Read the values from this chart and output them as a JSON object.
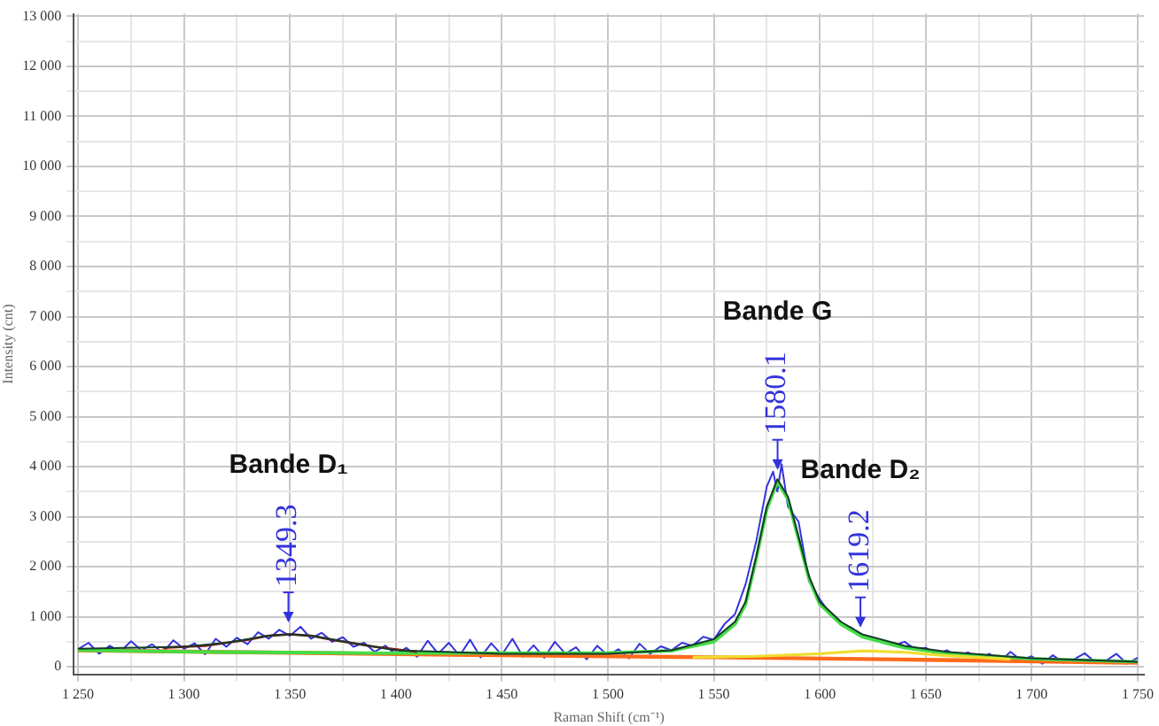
{
  "chart_data": {
    "type": "line",
    "xlabel": "Raman Shift (cm⁻¹)",
    "ylabel": "Intensity (cnt)",
    "xlim": [
      1248,
      1753
    ],
    "ylim": [
      -150,
      13050
    ],
    "xticks": [
      {
        "value": 1250,
        "label": "1 250"
      },
      {
        "value": 1275,
        "label": null
      },
      {
        "value": 1300,
        "label": "1 300"
      },
      {
        "value": 1325,
        "label": null
      },
      {
        "value": 1350,
        "label": "1 350"
      },
      {
        "value": 1375,
        "label": null
      },
      {
        "value": 1400,
        "label": "1 400"
      },
      {
        "value": 1425,
        "label": null
      },
      {
        "value": 1450,
        "label": "1 450"
      },
      {
        "value": 1475,
        "label": null
      },
      {
        "value": 1500,
        "label": "1 500"
      },
      {
        "value": 1525,
        "label": null
      },
      {
        "value": 1550,
        "label": "1 550"
      },
      {
        "value": 1575,
        "label": null
      },
      {
        "value": 1600,
        "label": "1 600"
      },
      {
        "value": 1625,
        "label": null
      },
      {
        "value": 1650,
        "label": "1 650"
      },
      {
        "value": 1675,
        "label": null
      },
      {
        "value": 1700,
        "label": "1 700"
      },
      {
        "value": 1725,
        "label": null
      },
      {
        "value": 1750,
        "label": "1 750"
      }
    ],
    "yticks": [
      0,
      {
        "value": 500,
        "label": null
      },
      {
        "value": 1000,
        "label": "1 000"
      },
      {
        "value": 1500,
        "label": null
      },
      {
        "value": 2000,
        "label": "2 000"
      },
      {
        "value": 2500,
        "label": null
      },
      {
        "value": 3000,
        "label": "3 000"
      },
      {
        "value": 3500,
        "label": null
      },
      {
        "value": 4000,
        "label": "4 000"
      },
      {
        "value": 4500,
        "label": null
      },
      {
        "value": 5000,
        "label": "5 000"
      },
      {
        "value": 5500,
        "label": null
      },
      {
        "value": 6000,
        "label": "6 000"
      },
      {
        "value": 6500,
        "label": null
      },
      {
        "value": 7000,
        "label": "7 000"
      },
      {
        "value": 7500,
        "label": null
      },
      {
        "value": 8000,
        "label": "8 000"
      },
      {
        "value": 8500,
        "label": null
      },
      {
        "value": 9000,
        "label": "9 000"
      },
      {
        "value": 9500,
        "label": null
      },
      {
        "value": 10000,
        "label": "10 000"
      },
      {
        "value": 10500,
        "label": null
      },
      {
        "value": 11000,
        "label": "11 000"
      },
      {
        "value": 11500,
        "label": null
      },
      {
        "value": 12000,
        "label": "12 000"
      },
      {
        "value": 12500,
        "label": null
      },
      {
        "value": 13000,
        "label": "13 000"
      }
    ],
    "grid": true,
    "series": [
      {
        "color": "#3333dd",
        "x": [
          1250,
          1255,
          1260,
          1265,
          1270,
          1275,
          1280,
          1285,
          1290,
          1295,
          1300,
          1305,
          1310,
          1315,
          1320,
          1325,
          1330,
          1335,
          1340,
          1345,
          1350,
          1355,
          1360,
          1365,
          1370,
          1375,
          1380,
          1385,
          1390,
          1395,
          1400,
          1405,
          1410,
          1415,
          1420,
          1425,
          1430,
          1435,
          1440,
          1445,
          1450,
          1455,
          1460,
          1465,
          1470,
          1475,
          1480,
          1485,
          1490,
          1495,
          1500,
          1505,
          1510,
          1515,
          1520,
          1525,
          1530,
          1535,
          1540,
          1545,
          1550,
          1555,
          1560,
          1565,
          1570,
          1575,
          1578,
          1580,
          1582,
          1585,
          1590,
          1595,
          1600,
          1605,
          1610,
          1615,
          1620,
          1625,
          1630,
          1635,
          1640,
          1645,
          1650,
          1655,
          1660,
          1665,
          1670,
          1675,
          1680,
          1685,
          1690,
          1695,
          1700,
          1705,
          1710,
          1715,
          1720,
          1725,
          1730,
          1735,
          1740,
          1745,
          1750
        ],
        "values": [
          350,
          480,
          260,
          420,
          300,
          510,
          330,
          450,
          280,
          530,
          360,
          470,
          250,
          560,
          400,
          580,
          450,
          690,
          560,
          740,
          620,
          800,
          560,
          680,
          500,
          590,
          400,
          480,
          300,
          420,
          250,
          380,
          200,
          520,
          260,
          480,
          220,
          540,
          190,
          470,
          240,
          560,
          200,
          430,
          180,
          500,
          260,
          390,
          150,
          420,
          230,
          350,
          170,
          460,
          260,
          410,
          330,
          480,
          420,
          600,
          540,
          850,
          1050,
          1650,
          2500,
          3600,
          3900,
          3500,
          4050,
          3200,
          2900,
          1700,
          1350,
          1050,
          850,
          780,
          620,
          560,
          480,
          420,
          500,
          350,
          380,
          250,
          330,
          200,
          290,
          160,
          260,
          110,
          300,
          130,
          210,
          60,
          230,
          80,
          150,
          270,
          90,
          120,
          260,
          60,
          180
        ]
      },
      {
        "color": "#ff6a1a",
        "x": [
          1250,
          1350,
          1450,
          1550,
          1650,
          1750
        ],
        "values": [
          330,
          280,
          230,
          190,
          140,
          80
        ]
      },
      {
        "color": "#44dd44",
        "x": [
          1250,
          1300,
          1400,
          1500,
          1530,
          1550,
          1560,
          1565,
          1570,
          1575,
          1580,
          1585,
          1590,
          1595,
          1600,
          1610,
          1620,
          1640,
          1660,
          1700,
          1750
        ],
        "values": [
          330,
          300,
          270,
          280,
          320,
          500,
          850,
          1250,
          2150,
          3150,
          3700,
          3350,
          2550,
          1750,
          1250,
          850,
          600,
          380,
          270,
          160,
          100
        ]
      },
      {
        "color": "#f0dd30",
        "x": [
          1540,
          1570,
          1600,
          1620,
          1640,
          1660,
          1690
        ],
        "values": [
          190,
          210,
          260,
          320,
          290,
          220,
          150
        ]
      },
      {
        "color": "#8b1a1a",
        "x": [
          1290,
          1310,
          1330,
          1340,
          1350,
          1360,
          1370,
          1390,
          1410
        ],
        "values": [
          380,
          420,
          540,
          620,
          650,
          620,
          540,
          400,
          300
        ]
      },
      {
        "color": "#143a2a",
        "x": [
          1250,
          1300,
          1320,
          1340,
          1350,
          1360,
          1380,
          1400,
          1450,
          1500,
          1530,
          1550,
          1560,
          1565,
          1570,
          1575,
          1580,
          1585,
          1590,
          1595,
          1600,
          1610,
          1620,
          1640,
          1660,
          1700,
          1750
        ],
        "values": [
          360,
          400,
          480,
          620,
          650,
          620,
          470,
          330,
          260,
          260,
          330,
          550,
          900,
          1300,
          2200,
          3200,
          3750,
          3400,
          2600,
          1800,
          1300,
          900,
          650,
          420,
          300,
          170,
          100
        ]
      }
    ],
    "annotations": [
      "Bande D₁",
      {
        "text": "1349.3",
        "x": 1349.3,
        "y": 850
      },
      "Bande G",
      {
        "text": "1580.1",
        "x": 1580.1,
        "y": 3900
      },
      "Bande D₂",
      {
        "text": "1619.2",
        "x": 1619.2,
        "y": 750
      }
    ]
  }
}
